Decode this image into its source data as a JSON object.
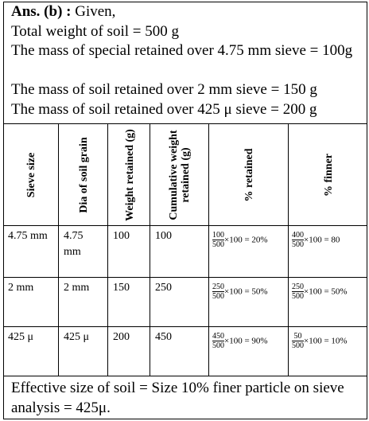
{
  "intro": {
    "label": "Ans. (b) :",
    "lead": "Given,",
    "lines": [
      "Total weight of soil = 500 g",
      "The mass of special retained over 4.75 mm sieve = 100g",
      "The mass of soil retained over 2 mm sieve = 150 g",
      "The mass of soil retained over 425 μ sieve = 200 g"
    ]
  },
  "table": {
    "headers": [
      "Sieve size",
      "Dia of soil grain",
      "Weight retained (g)",
      "Cumulative weight retained (g)",
      "% retained",
      "% finner"
    ],
    "rows": [
      [
        "4.75 mm",
        "4.75 mm",
        "100",
        "100",
        {
          "num": "100",
          "den": "500",
          "rest": "×100 = 20%"
        },
        {
          "num": "400",
          "den": "500",
          "rest": "×100 = 80"
        }
      ],
      [
        "2 mm",
        "2 mm",
        "150",
        "250",
        {
          "num": "250",
          "den": "500",
          "rest": "×100 = 50%"
        },
        {
          "num": "250",
          "den": "500",
          "rest": "×100 = 50%"
        }
      ],
      [
        "425 μ",
        "425 μ",
        "200",
        "450",
        {
          "num": "450",
          "den": "500",
          "rest": "×100 = 90%"
        },
        {
          "num": "50",
          "den": "500",
          "rest": "×100 = 10%"
        }
      ]
    ]
  },
  "conclusion": "Effective size of soil = Size 10% finer particle on sieve analysis = 425μ."
}
